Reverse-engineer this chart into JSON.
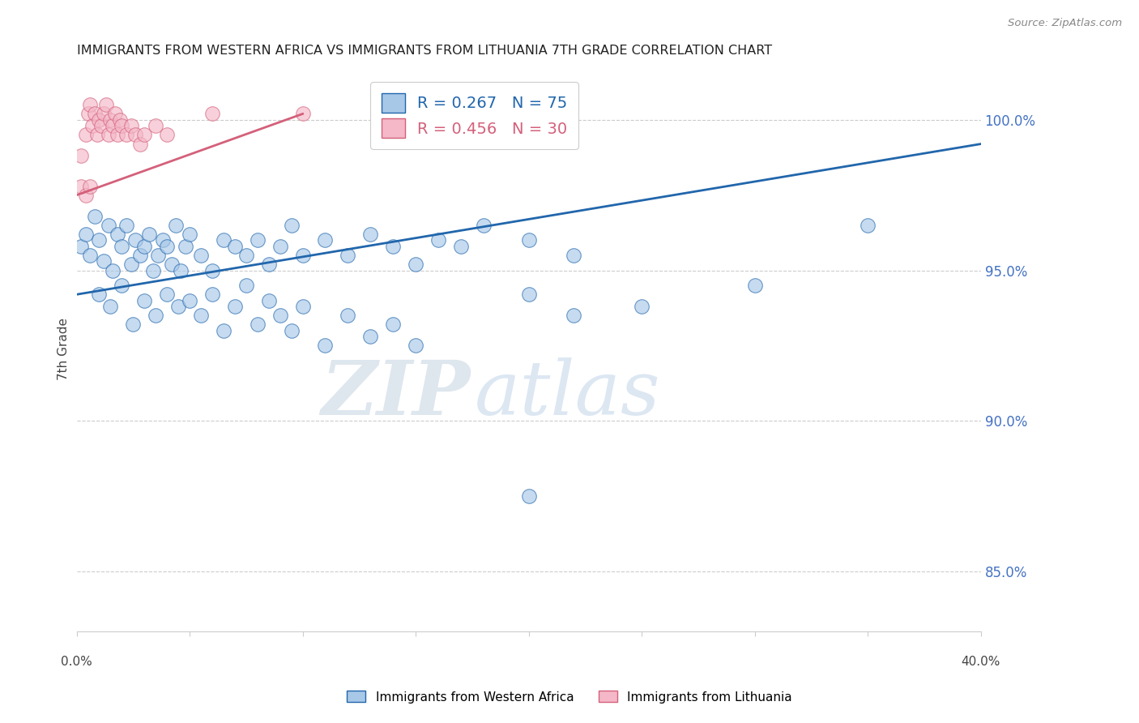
{
  "title": "IMMIGRANTS FROM WESTERN AFRICA VS IMMIGRANTS FROM LITHUANIA 7TH GRADE CORRELATION CHART",
  "source": "Source: ZipAtlas.com",
  "ylabel": "7th Grade",
  "yticks": [
    85.0,
    90.0,
    95.0,
    100.0
  ],
  "ytick_labels": [
    "85.0%",
    "90.0%",
    "95.0%",
    "100.0%"
  ],
  "xlim": [
    0.0,
    0.4
  ],
  "ylim": [
    83.0,
    101.8
  ],
  "legend_blue_R": "0.267",
  "legend_blue_N": "75",
  "legend_pink_R": "0.456",
  "legend_pink_N": "30",
  "blue_color": "#a8c8e8",
  "pink_color": "#f4b8c8",
  "line_blue": "#2166ac",
  "line_pink": "#d4607a",
  "watermark_zip": "ZIP",
  "watermark_atlas": "atlas",
  "legend_label_blue": "Immigrants from Western Africa",
  "legend_label_pink": "Immigrants from Lithuania",
  "blue_scatter_x": [
    0.002,
    0.004,
    0.006,
    0.008,
    0.01,
    0.012,
    0.014,
    0.016,
    0.018,
    0.02,
    0.022,
    0.024,
    0.026,
    0.028,
    0.03,
    0.032,
    0.034,
    0.036,
    0.038,
    0.04,
    0.042,
    0.044,
    0.046,
    0.048,
    0.05,
    0.055,
    0.06,
    0.065,
    0.07,
    0.075,
    0.08,
    0.085,
    0.09,
    0.095,
    0.1,
    0.11,
    0.12,
    0.13,
    0.14,
    0.15,
    0.16,
    0.17,
    0.18,
    0.2,
    0.22,
    0.01,
    0.015,
    0.02,
    0.025,
    0.03,
    0.035,
    0.04,
    0.045,
    0.05,
    0.055,
    0.06,
    0.065,
    0.07,
    0.075,
    0.08,
    0.085,
    0.09,
    0.095,
    0.1,
    0.11,
    0.12,
    0.13,
    0.14,
    0.15,
    0.2,
    0.22,
    0.25,
    0.3,
    0.35,
    0.2
  ],
  "blue_scatter_y": [
    95.8,
    96.2,
    95.5,
    96.8,
    96.0,
    95.3,
    96.5,
    95.0,
    96.2,
    95.8,
    96.5,
    95.2,
    96.0,
    95.5,
    95.8,
    96.2,
    95.0,
    95.5,
    96.0,
    95.8,
    95.2,
    96.5,
    95.0,
    95.8,
    96.2,
    95.5,
    95.0,
    96.0,
    95.8,
    95.5,
    96.0,
    95.2,
    95.8,
    96.5,
    95.5,
    96.0,
    95.5,
    96.2,
    95.8,
    95.2,
    96.0,
    95.8,
    96.5,
    96.0,
    95.5,
    94.2,
    93.8,
    94.5,
    93.2,
    94.0,
    93.5,
    94.2,
    93.8,
    94.0,
    93.5,
    94.2,
    93.0,
    93.8,
    94.5,
    93.2,
    94.0,
    93.5,
    93.0,
    93.8,
    92.5,
    93.5,
    92.8,
    93.2,
    92.5,
    94.2,
    93.5,
    93.8,
    94.5,
    96.5,
    87.5
  ],
  "pink_scatter_x": [
    0.002,
    0.004,
    0.005,
    0.006,
    0.007,
    0.008,
    0.009,
    0.01,
    0.011,
    0.012,
    0.013,
    0.014,
    0.015,
    0.016,
    0.017,
    0.018,
    0.019,
    0.02,
    0.022,
    0.024,
    0.026,
    0.028,
    0.03,
    0.035,
    0.04,
    0.002,
    0.004,
    0.006,
    0.06,
    0.1
  ],
  "pink_scatter_y": [
    98.8,
    99.5,
    100.2,
    100.5,
    99.8,
    100.2,
    99.5,
    100.0,
    99.8,
    100.2,
    100.5,
    99.5,
    100.0,
    99.8,
    100.2,
    99.5,
    100.0,
    99.8,
    99.5,
    99.8,
    99.5,
    99.2,
    99.5,
    99.8,
    99.5,
    97.8,
    97.5,
    97.8,
    100.2,
    100.2
  ],
  "blue_line_x": [
    0.0,
    0.4
  ],
  "blue_line_y": [
    94.2,
    99.2
  ],
  "pink_line_x": [
    0.0,
    0.1
  ],
  "pink_line_y": [
    97.5,
    100.2
  ]
}
